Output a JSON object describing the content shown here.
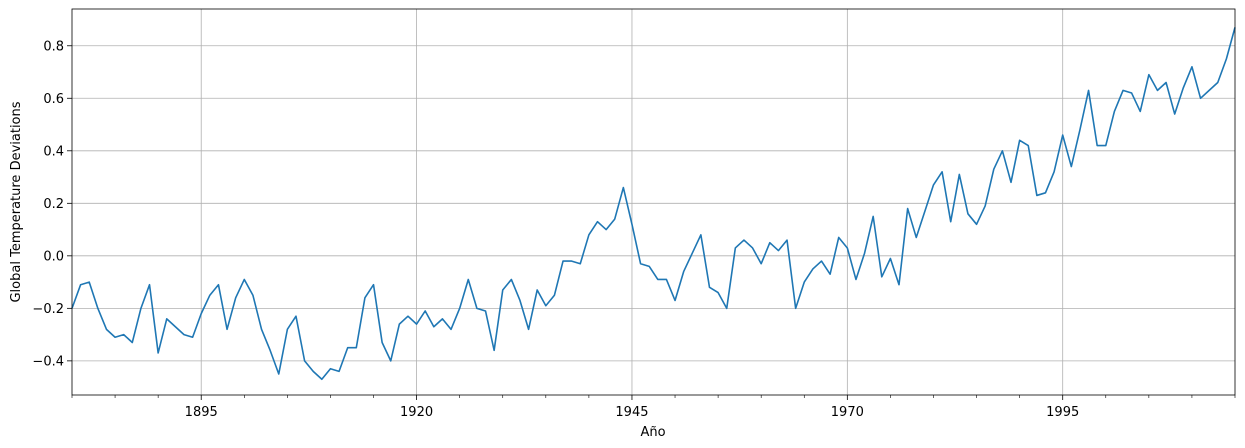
{
  "chart_data": {
    "type": "line",
    "xlabel": "Año",
    "ylabel": "Global Temperature Deviations",
    "xlim": [
      1880,
      2015
    ],
    "ylim": [
      -0.53,
      0.94
    ],
    "x_ticks": [
      1895,
      1920,
      1945,
      1970,
      1995
    ],
    "x_tick_labels": [
      "1895",
      "1920",
      "1945",
      "1970",
      "1995"
    ],
    "y_ticks": [
      -0.4,
      -0.2,
      0.0,
      0.2,
      0.4,
      0.6,
      0.8
    ],
    "y_tick_labels": [
      "−0.4",
      "−0.2",
      "0.0",
      "0.2",
      "0.4",
      "0.6",
      "0.8"
    ],
    "grid": true,
    "line_color": "#1f77b4",
    "series": [
      {
        "x": [
          1880,
          1881,
          1882,
          1883,
          1884,
          1885,
          1886,
          1887,
          1888,
          1889,
          1890,
          1891,
          1892,
          1893,
          1894,
          1895,
          1896,
          1897,
          1898,
          1899,
          1900,
          1901,
          1902,
          1903,
          1904,
          1905,
          1906,
          1907,
          1908,
          1909,
          1910,
          1911,
          1912,
          1913,
          1914,
          1915,
          1916,
          1917,
          1918,
          1919,
          1920,
          1921,
          1922,
          1923,
          1924,
          1925,
          1926,
          1927,
          1928,
          1929,
          1930,
          1931,
          1932,
          1933,
          1934,
          1935,
          1936,
          1937,
          1938,
          1939,
          1940,
          1941,
          1942,
          1943,
          1944,
          1945,
          1946,
          1947,
          1948,
          1949,
          1950,
          1951,
          1952,
          1953,
          1954,
          1955,
          1956,
          1957,
          1958,
          1959,
          1960,
          1961,
          1962,
          1963,
          1964,
          1965,
          1966,
          1967,
          1968,
          1969,
          1970,
          1971,
          1972,
          1973,
          1974,
          1975,
          1976,
          1977,
          1978,
          1979,
          1980,
          1981,
          1982,
          1983,
          1984,
          1985,
          1986,
          1987,
          1988,
          1989,
          1990,
          1991,
          1992,
          1993,
          1994,
          1995,
          1996,
          1997,
          1998,
          1999,
          2000,
          2001,
          2002,
          2003,
          2004,
          2005,
          2006,
          2007,
          2008,
          2009,
          2010,
          2011,
          2012,
          2013,
          2014,
          2015
        ],
        "values": [
          -0.2,
          -0.11,
          -0.1,
          -0.2,
          -0.28,
          -0.31,
          -0.3,
          -0.33,
          -0.2,
          -0.11,
          -0.37,
          -0.24,
          -0.27,
          -0.3,
          -0.31,
          -0.22,
          -0.15,
          -0.11,
          -0.28,
          -0.16,
          -0.09,
          -0.15,
          -0.28,
          -0.36,
          -0.45,
          -0.28,
          -0.23,
          -0.4,
          -0.44,
          -0.47,
          -0.43,
          -0.44,
          -0.35,
          -0.35,
          -0.16,
          -0.11,
          -0.33,
          -0.4,
          -0.26,
          -0.23,
          -0.26,
          -0.21,
          -0.27,
          -0.24,
          -0.28,
          -0.2,
          -0.09,
          -0.2,
          -0.21,
          -0.36,
          -0.13,
          -0.09,
          -0.17,
          -0.28,
          -0.13,
          -0.19,
          -0.15,
          -0.02,
          -0.02,
          -0.03,
          0.08,
          0.13,
          0.1,
          0.14,
          0.26,
          0.12,
          -0.03,
          -0.04,
          -0.09,
          -0.09,
          -0.17,
          -0.06,
          0.01,
          0.08,
          -0.12,
          -0.14,
          -0.2,
          0.03,
          0.06,
          0.03,
          -0.03,
          0.05,
          0.02,
          0.06,
          -0.2,
          -0.1,
          -0.05,
          -0.02,
          -0.07,
          0.07,
          0.03,
          -0.09,
          0.01,
          0.15,
          -0.08,
          -0.01,
          -0.11,
          0.18,
          0.07,
          0.17,
          0.27,
          0.32,
          0.13,
          0.31,
          0.16,
          0.12,
          0.19,
          0.33,
          0.4,
          0.28,
          0.44,
          0.42,
          0.23,
          0.24,
          0.32,
          0.46,
          0.34,
          0.48,
          0.63,
          0.42,
          0.42,
          0.55,
          0.63,
          0.62,
          0.55,
          0.69,
          0.63,
          0.66,
          0.54,
          0.64,
          0.72,
          0.6,
          0.63,
          0.66,
          0.75,
          0.87
        ]
      }
    ]
  }
}
